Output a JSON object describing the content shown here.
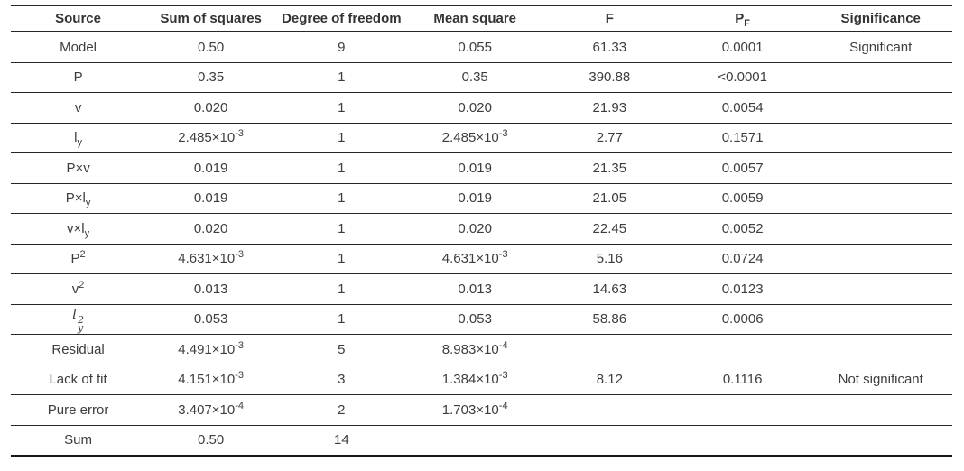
{
  "colors": {
    "background": "#ffffff",
    "text": "#3d3d3d",
    "header_text": "#333333",
    "rule": "#262626"
  },
  "table": {
    "columns": [
      {
        "key": "source",
        "label": "Source"
      },
      {
        "key": "ss",
        "label": "Sum of squares"
      },
      {
        "key": "df",
        "label": "Degree of freedom"
      },
      {
        "key": "ms",
        "label": "Mean square"
      },
      {
        "key": "f",
        "label": "F"
      },
      {
        "key": "pf",
        "label": "P_{F}"
      },
      {
        "key": "sig",
        "label": "Significance"
      }
    ],
    "rows": [
      {
        "source": "Model",
        "ss": "0.50",
        "df": "9",
        "ms": "0.055",
        "f": "61.33",
        "pf": "0.0001",
        "sig": "Significant"
      },
      {
        "source": "P",
        "ss": "0.35",
        "df": "1",
        "ms": "0.35",
        "f": "390.88",
        "pf": "<0.0001",
        "sig": ""
      },
      {
        "source": "v",
        "ss": "0.020",
        "df": "1",
        "ms": "0.020",
        "f": "21.93",
        "pf": "0.0054",
        "sig": ""
      },
      {
        "source": "l_{y}",
        "ss": "2.485×10^{-3}",
        "df": "1",
        "ms": "2.485×10^{-3}",
        "f": "2.77",
        "pf": "0.1571",
        "sig": ""
      },
      {
        "source": "P×v",
        "ss": "0.019",
        "df": "1",
        "ms": "0.019",
        "f": "21.35",
        "pf": "0.0057",
        "sig": ""
      },
      {
        "source": "P×l_{y}",
        "ss": "0.019",
        "df": "1",
        "ms": "0.019",
        "f": "21.05",
        "pf": "0.0059",
        "sig": ""
      },
      {
        "source": "v×l_{y}",
        "ss": "0.020",
        "df": "1",
        "ms": "0.020",
        "f": "22.45",
        "pf": "0.0052",
        "sig": ""
      },
      {
        "source": "P^{2}",
        "ss": "4.631×10^{-3}",
        "df": "1",
        "ms": "4.631×10^{-3}",
        "f": "5.16",
        "pf": "0.0724",
        "sig": ""
      },
      {
        "source": "v^{2}",
        "ss": "0.013",
        "df": "1",
        "ms": "0.013",
        "f": "14.63",
        "pf": "0.0123",
        "sig": ""
      },
      {
        "source": "l^{2}_{y}",
        "math": true,
        "ss": "0.053",
        "df": "1",
        "ms": "0.053",
        "f": "58.86",
        "pf": "0.0006",
        "sig": ""
      },
      {
        "source": "Residual",
        "ss": "4.491×10^{-3}",
        "df": "5",
        "ms": "8.983×10^{-4}",
        "f": "",
        "pf": "",
        "sig": ""
      },
      {
        "source": "Lack of fit",
        "ss": "4.151×10^{-3}",
        "df": "3",
        "ms": "1.384×10^{-3}",
        "f": "8.12",
        "pf": "0.1116",
        "sig": "Not significant"
      },
      {
        "source": "Pure error",
        "ss": "3.407×10^{-4}",
        "df": "2",
        "ms": "1.703×10^{-4}",
        "f": "",
        "pf": "",
        "sig": ""
      },
      {
        "source": "Sum",
        "ss": "0.50",
        "df": "14",
        "ms": "",
        "f": "",
        "pf": "",
        "sig": ""
      }
    ],
    "column_widths_pct": [
      14.3,
      13.9,
      13.85,
      14.5,
      14.1,
      14.15,
      15.2
    ]
  }
}
